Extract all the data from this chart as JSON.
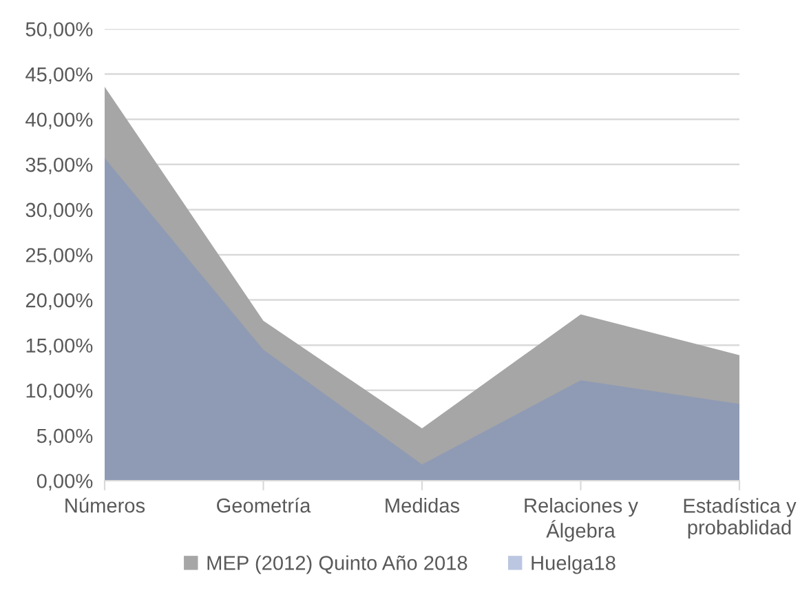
{
  "chart_data": {
    "type": "area",
    "categories": [
      "Números",
      "Geometría",
      "Medidas",
      "Relaciones y\nÁlgebra",
      "Estadística y\nprobablidad"
    ],
    "series": [
      {
        "name": "MEP (2012) Quinto Año 2018",
        "color": "#a6a6a6",
        "values": [
          43.6,
          17.7,
          5.8,
          18.4,
          13.9
        ]
      },
      {
        "name": "Huelga18",
        "color": "#7890c4",
        "values": [
          35.7,
          14.5,
          1.8,
          11.1,
          8.5
        ]
      }
    ],
    "ylim": [
      0,
      50
    ],
    "yticks": [
      {
        "value": 0,
        "label": "0,00%"
      },
      {
        "value": 5,
        "label": "5,00%"
      },
      {
        "value": 10,
        "label": "10,00%"
      },
      {
        "value": 15,
        "label": "15,00%"
      },
      {
        "value": 20,
        "label": "20,00%"
      },
      {
        "value": 25,
        "label": "25,00%"
      },
      {
        "value": 30,
        "label": "30,00%"
      },
      {
        "value": 35,
        "label": "35,00%"
      },
      {
        "value": 40,
        "label": "40,00%"
      },
      {
        "value": 45,
        "label": "45,00%"
      },
      {
        "value": 50,
        "label": "50,00%"
      }
    ],
    "grid": "y",
    "legend": "bottom"
  }
}
